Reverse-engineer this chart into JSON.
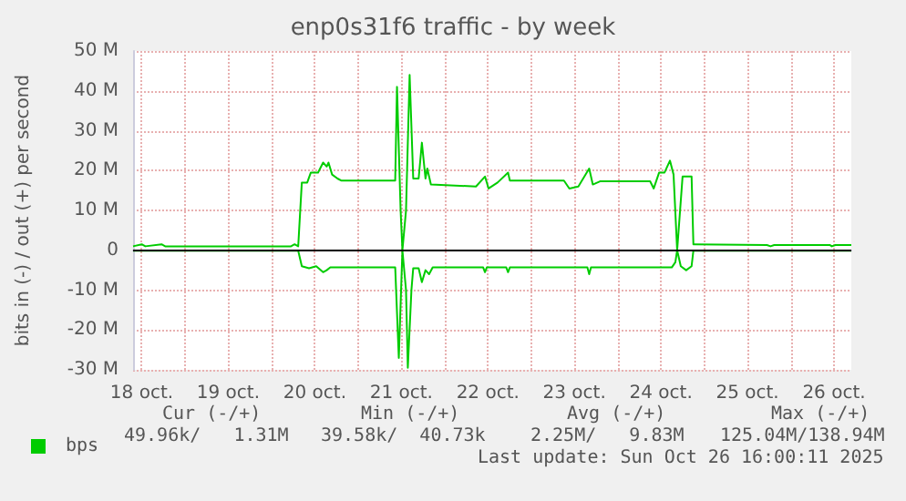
{
  "chart_data": {
    "type": "line",
    "title": "enp0s31f6 traffic - by week",
    "ylabel": "bits in (-) / out (+) per second",
    "xlim": [
      "2025-10-18T09:36",
      "2025-10-26T16:48"
    ],
    "xticks": [
      {
        "value": "2025-10-18T12:00",
        "label": "18 oct."
      },
      {
        "value": "2025-10-19T00:00",
        "label": null
      },
      {
        "value": "2025-10-19T12:00",
        "label": "19 oct."
      },
      {
        "value": "2025-10-20T00:00",
        "label": null
      },
      {
        "value": "2025-10-20T12:00",
        "label": "20 oct."
      },
      {
        "value": "2025-10-21T00:00",
        "label": null
      },
      {
        "value": "2025-10-21T12:00",
        "label": "21 oct."
      },
      {
        "value": "2025-10-22T00:00",
        "label": null
      },
      {
        "value": "2025-10-22T12:00",
        "label": "22 oct."
      },
      {
        "value": "2025-10-23T00:00",
        "label": null
      },
      {
        "value": "2025-10-23T12:00",
        "label": "23 oct."
      },
      {
        "value": "2025-10-24T00:00",
        "label": null
      },
      {
        "value": "2025-10-24T12:00",
        "label": "24 oct."
      },
      {
        "value": "2025-10-25T00:00",
        "label": null
      },
      {
        "value": "2025-10-25T12:00",
        "label": "25 oct."
      },
      {
        "value": "2025-10-26T00:00",
        "label": null
      },
      {
        "value": "2025-10-26T12:00",
        "label": "26 oct."
      }
    ],
    "ylim": [
      -30,
      50
    ],
    "yticks": [
      {
        "value": -30,
        "label": "-30 M"
      },
      {
        "value": -20,
        "label": "-20 M"
      },
      {
        "value": -10,
        "label": "-10 M"
      },
      0,
      {
        "value": 10,
        "label": "10 M"
      },
      {
        "value": 20,
        "label": "20 M"
      },
      {
        "value": 30,
        "label": "30 M"
      },
      {
        "value": 40,
        "label": "40 M"
      },
      {
        "value": 50,
        "label": "50 M"
      }
    ],
    "grid": true,
    "legend": "bottom left",
    "marker": "none",
    "line_style": "solid",
    "ref_lines": [
      {
        "axis": "y",
        "value": 0,
        "label": null,
        "color": "#000000"
      }
    ],
    "annotations": [
      "Cur (-/+)",
      "Min (-/+)",
      "Avg (-/+)",
      "Max (-/+)",
      "49.96k/   1.31M",
      "39.58k/  40.73k",
      "2.25M/   9.83M",
      "125.04M/138.94M",
      "Last update: Sun Oct 26 16:00:11 2025"
    ],
    "series": [
      {
        "name": "bps",
        "color": "#00cc00",
        "x": [
          "2025-10-18T09:36",
          "2025-10-18T12:00",
          "2025-10-18T13:00",
          "2025-10-18T17:30",
          "2025-10-18T18:30",
          "2025-10-20T05:24",
          "2025-10-20T06:24",
          "2025-10-20T07:24",
          "2025-10-20T08:24",
          "2025-10-20T09:54",
          "2025-10-20T10:54",
          "2025-10-20T12:54",
          "2025-10-20T14:18",
          "2025-10-20T15:18",
          "2025-10-20T15:48",
          "2025-10-20T16:48",
          "2025-10-20T18:18",
          "2025-10-20T19:18",
          "2025-10-21T10:18",
          "2025-10-21T10:48",
          "2025-10-21T11:48",
          "2025-10-21T12:18",
          "2025-10-21T13:18",
          "2025-10-21T14:18",
          "2025-10-21T15:18",
          "2025-10-21T16:48",
          "2025-10-21T17:42",
          "2025-10-21T18:42",
          "2025-10-21T19:12",
          "2025-10-21T20:12",
          "2025-10-22T08:42",
          "2025-10-22T11:12",
          "2025-10-22T12:12",
          "2025-10-22T14:42",
          "2025-10-22T17:36",
          "2025-10-22T18:06",
          "2025-10-23T09:06",
          "2025-10-23T10:36",
          "2025-10-23T13:06",
          "2025-10-23T16:06",
          "2025-10-23T17:06",
          "2025-10-23T19:06",
          "2025-10-24T09:00",
          "2025-10-24T10:00",
          "2025-10-24T11:30",
          "2025-10-24T13:00",
          "2025-10-24T14:30",
          "2025-10-24T15:30",
          "2025-10-24T16:30",
          "2025-10-24T18:00",
          "2025-10-24T20:30",
          "2025-10-24T21:00",
          "2025-10-25T17:24",
          "2025-10-25T18:24",
          "2025-10-25T19:24",
          "2025-10-26T10:54",
          "2025-10-26T11:24",
          "2025-10-26T12:24",
          "2025-10-26T16:48"
        ],
        "values": [
          1.0,
          1.5,
          1.0,
          1.5,
          1.0,
          1.0,
          1.5,
          1.0,
          17,
          17,
          19.5,
          19.5,
          22,
          21,
          22,
          19,
          18,
          17.5,
          17.5,
          41,
          10,
          0,
          10,
          44,
          18,
          18,
          27,
          18,
          20.5,
          16.5,
          16,
          18.5,
          15.5,
          17,
          19.5,
          17.5,
          17.5,
          15.5,
          16,
          20.5,
          16.5,
          17.3,
          17.3,
          15.5,
          19.5,
          19.5,
          22.5,
          19,
          0,
          18.5,
          18.5,
          1.5,
          1.3,
          1.0,
          1.3,
          1.3,
          1.0,
          1.3,
          1.3
        ]
      },
      {
        "color": "#00cc00",
        "x": [
          "2025-10-18T09:36",
          "2025-10-20T07:24",
          "2025-10-20T08:24",
          "2025-10-20T10:24",
          "2025-10-20T12:24",
          "2025-10-20T14:18",
          "2025-10-20T15:18",
          "2025-10-20T16:18",
          "2025-10-21T10:18",
          "2025-10-21T11:18",
          "2025-10-21T12:18",
          "2025-10-21T13:18",
          "2025-10-21T13:48",
          "2025-10-21T14:48",
          "2025-10-21T15:18",
          "2025-10-21T16:48",
          "2025-10-21T17:42",
          "2025-10-21T18:42",
          "2025-10-21T19:42",
          "2025-10-21T20:42",
          "2025-10-22T10:42",
          "2025-10-22T11:12",
          "2025-10-22T11:42",
          "2025-10-22T17:06",
          "2025-10-22T17:36",
          "2025-10-22T18:06",
          "2025-10-23T15:36",
          "2025-10-23T16:06",
          "2025-10-23T16:36",
          "2025-10-24T15:00",
          "2025-10-24T16:00",
          "2025-10-24T16:30",
          "2025-10-24T17:30",
          "2025-10-24T19:00",
          "2025-10-24T20:30",
          "2025-10-24T21:00",
          "2025-10-26T16:48"
        ],
        "values": [
          -0.1,
          -0.1,
          -4,
          -4.5,
          -4,
          -5.5,
          -5,
          -4.3,
          -4.3,
          -27,
          0,
          -10,
          -29.5,
          -10,
          -4.5,
          -4.5,
          -8,
          -5,
          -6,
          -4.3,
          -4.3,
          -5.5,
          -4.3,
          -4.3,
          -5.5,
          -4.3,
          -4.3,
          -6,
          -4.3,
          -4.3,
          -3,
          0,
          -4,
          -5,
          -4,
          -0.1,
          -0.1
        ]
      }
    ]
  }
}
